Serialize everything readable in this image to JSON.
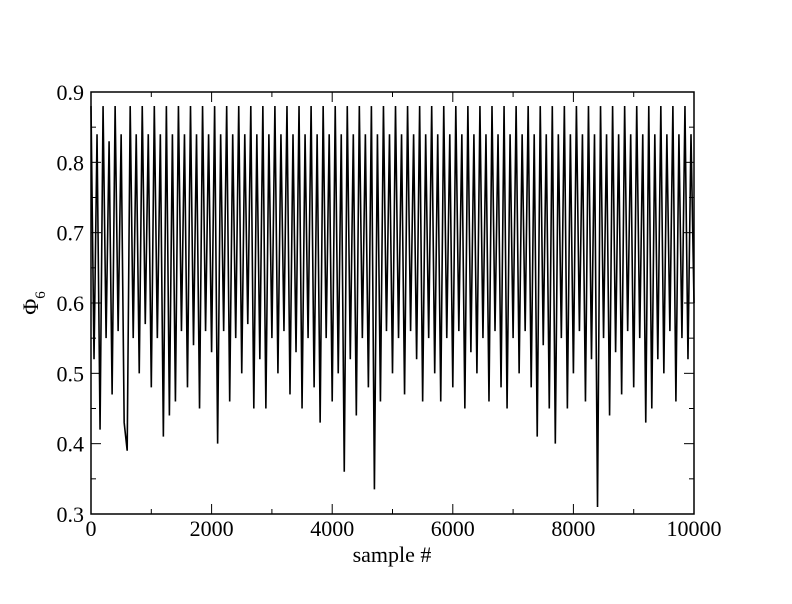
{
  "chart_data": {
    "type": "line",
    "xlabel": "sample #",
    "ylabel": "Φ",
    "ylabel_subscript": "6",
    "color": "#000000",
    "xlim": [
      0,
      10000
    ],
    "xticks": [
      0,
      2000,
      4000,
      6000,
      8000,
      10000
    ],
    "xminorticks": [
      1000,
      3000,
      5000,
      7000,
      9000
    ],
    "ylim": [
      0.3,
      0.9
    ],
    "yticks": [
      0.3,
      0.4,
      0.5,
      0.6,
      0.7,
      0.8,
      0.9
    ],
    "yminorticks": [
      0.35,
      0.45,
      0.55,
      0.65,
      0.75,
      0.85
    ],
    "x": [
      0,
      50,
      100,
      150,
      200,
      250,
      300,
      350,
      400,
      450,
      500,
      550,
      600,
      650,
      700,
      750,
      800,
      850,
      900,
      950,
      1000,
      1050,
      1100,
      1150,
      1200,
      1250,
      1300,
      1350,
      1400,
      1450,
      1500,
      1550,
      1600,
      1650,
      1700,
      1750,
      1800,
      1850,
      1900,
      1950,
      2000,
      2050,
      2100,
      2150,
      2200,
      2250,
      2300,
      2350,
      2400,
      2450,
      2500,
      2550,
      2600,
      2650,
      2700,
      2750,
      2800,
      2850,
      2900,
      2950,
      3000,
      3050,
      3100,
      3150,
      3200,
      3250,
      3300,
      3350,
      3400,
      3450,
      3500,
      3550,
      3600,
      3650,
      3700,
      3750,
      3800,
      3850,
      3900,
      3950,
      4000,
      4050,
      4100,
      4150,
      4200,
      4250,
      4300,
      4350,
      4400,
      4450,
      4500,
      4550,
      4600,
      4650,
      4700,
      4750,
      4800,
      4850,
      4900,
      4950,
      5000,
      5050,
      5100,
      5150,
      5200,
      5250,
      5300,
      5350,
      5400,
      5450,
      5500,
      5550,
      5600,
      5650,
      5700,
      5750,
      5800,
      5850,
      5900,
      5950,
      6000,
      6050,
      6100,
      6150,
      6200,
      6250,
      6300,
      6350,
      6400,
      6450,
      6500,
      6550,
      6600,
      6650,
      6700,
      6750,
      6800,
      6850,
      6900,
      6950,
      7000,
      7050,
      7100,
      7150,
      7200,
      7250,
      7300,
      7350,
      7400,
      7450,
      7500,
      7550,
      7600,
      7650,
      7700,
      7750,
      7800,
      7850,
      7900,
      7950,
      8000,
      8050,
      8100,
      8150,
      8200,
      8250,
      8300,
      8350,
      8400,
      8450,
      8500,
      8550,
      8600,
      8650,
      8700,
      8750,
      8800,
      8850,
      8900,
      8950,
      9000,
      9050,
      9100,
      9150,
      9200,
      9250,
      9300,
      9350,
      9400,
      9450,
      9500,
      9550,
      9600,
      9650,
      9700,
      9750,
      9800,
      9850,
      9900,
      9950,
      10000
    ],
    "values": [
      0.88,
      0.52,
      0.84,
      0.42,
      0.88,
      0.55,
      0.83,
      0.47,
      0.88,
      0.56,
      0.84,
      0.43,
      0.39,
      0.88,
      0.55,
      0.84,
      0.5,
      0.88,
      0.57,
      0.84,
      0.48,
      0.88,
      0.55,
      0.84,
      0.41,
      0.88,
      0.44,
      0.84,
      0.46,
      0.88,
      0.56,
      0.84,
      0.48,
      0.88,
      0.54,
      0.84,
      0.45,
      0.88,
      0.56,
      0.84,
      0.53,
      0.88,
      0.4,
      0.84,
      0.56,
      0.88,
      0.46,
      0.84,
      0.55,
      0.88,
      0.5,
      0.84,
      0.57,
      0.88,
      0.45,
      0.84,
      0.52,
      0.88,
      0.45,
      0.84,
      0.55,
      0.88,
      0.5,
      0.84,
      0.56,
      0.88,
      0.47,
      0.84,
      0.53,
      0.88,
      0.45,
      0.84,
      0.55,
      0.88,
      0.48,
      0.84,
      0.43,
      0.88,
      0.55,
      0.84,
      0.46,
      0.88,
      0.5,
      0.84,
      0.36,
      0.88,
      0.52,
      0.84,
      0.44,
      0.88,
      0.55,
      0.84,
      0.48,
      0.88,
      0.335,
      0.84,
      0.46,
      0.88,
      0.56,
      0.84,
      0.5,
      0.88,
      0.55,
      0.84,
      0.47,
      0.88,
      0.56,
      0.84,
      0.52,
      0.88,
      0.46,
      0.84,
      0.55,
      0.88,
      0.5,
      0.84,
      0.46,
      0.88,
      0.55,
      0.84,
      0.48,
      0.88,
      0.56,
      0.84,
      0.45,
      0.88,
      0.53,
      0.84,
      0.5,
      0.88,
      0.55,
      0.84,
      0.46,
      0.88,
      0.56,
      0.84,
      0.48,
      0.88,
      0.45,
      0.84,
      0.55,
      0.88,
      0.5,
      0.84,
      0.56,
      0.88,
      0.48,
      0.84,
      0.41,
      0.88,
      0.54,
      0.84,
      0.45,
      0.88,
      0.4,
      0.84,
      0.55,
      0.88,
      0.45,
      0.84,
      0.5,
      0.88,
      0.56,
      0.84,
      0.46,
      0.88,
      0.52,
      0.84,
      0.31,
      0.88,
      0.55,
      0.84,
      0.44,
      0.88,
      0.53,
      0.84,
      0.47,
      0.88,
      0.56,
      0.84,
      0.48,
      0.88,
      0.55,
      0.84,
      0.43,
      0.88,
      0.45,
      0.84,
      0.52,
      0.88,
      0.5,
      0.84,
      0.56,
      0.88,
      0.46,
      0.84,
      0.55,
      0.88,
      0.52,
      0.84,
      0.6
    ]
  }
}
